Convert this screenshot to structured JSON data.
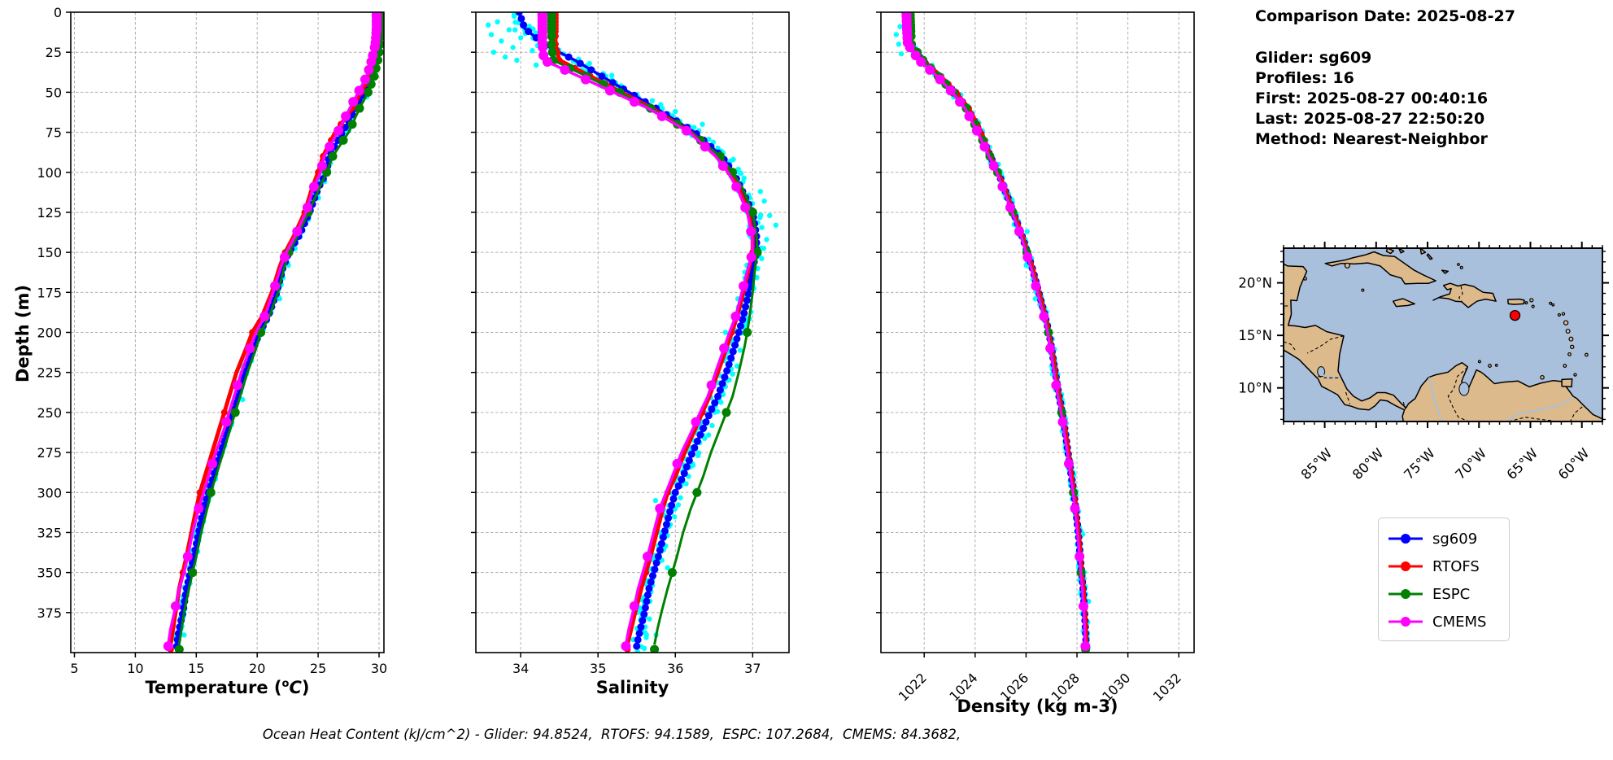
{
  "info_panel": {
    "date_line": "Comparison Date: 2025-08-27",
    "lines": [
      "Glider: sg609",
      "Profiles: 16",
      "First: 2025-08-27 00:40:16",
      "Last: 2025-08-27 22:50:20",
      "Method: Nearest-Neighbor"
    ]
  },
  "caption": {
    "text": "Ocean Heat Content (kJ/cm^2) - Glider: 94.8524,  RTOFS: 94.1589,  ESPC: 107.2684,  CMEMS: 84.3682,"
  },
  "legend": {
    "entries": [
      {
        "label": "sg609",
        "color": "#0000ff"
      },
      {
        "label": "RTOFS",
        "color": "#ff0000"
      },
      {
        "label": "ESPC",
        "color": "#008000"
      },
      {
        "label": "CMEMS",
        "color": "#ff00ff"
      }
    ]
  },
  "chart_data": {
    "type": "line",
    "description": "Vertical ocean profiles: glider sg609 vs models; value on x, depth (m) increasing downward on y",
    "ylabel": "Depth (m)",
    "depth_ticks": [
      0,
      25,
      50,
      75,
      100,
      125,
      150,
      175,
      200,
      225,
      250,
      275,
      300,
      325,
      350,
      375
    ],
    "depth_range": [
      0,
      400
    ],
    "depths": [
      0,
      10,
      20,
      30,
      40,
      50,
      60,
      75,
      90,
      100,
      110,
      125,
      140,
      150,
      160,
      175,
      190,
      200,
      210,
      225,
      240,
      250,
      260,
      275,
      290,
      300,
      310,
      325,
      340,
      350,
      360,
      375,
      385,
      395
    ],
    "panels": [
      {
        "key": "temperature",
        "xlabel_pre": "Temperature (",
        "xlabel_sup": "o",
        "xlabel_var": "C",
        "xlabel_post": ")",
        "xlim": [
          4.7,
          30.4
        ],
        "xticks": [
          5,
          10,
          15,
          20,
          25,
          30
        ],
        "tick_rotation": 0
      },
      {
        "key": "salinity",
        "xlabel": "Salinity",
        "xlim": [
          33.42,
          37.47
        ],
        "xticks": [
          34,
          35,
          36,
          37
        ],
        "tick_rotation": 0
      },
      {
        "key": "density",
        "xlabel": "Density (kg m-3)",
        "xlim": [
          1020.3,
          1032.6
        ],
        "xticks": [
          1022,
          1024,
          1026,
          1028,
          1030,
          1032
        ],
        "tick_rotation": 45
      }
    ],
    "series": [
      {
        "name": "sg609",
        "color": "#0000ff",
        "line_width": 3.5,
        "marker_radius": 4.5,
        "marker_step": 4,
        "temperature": [
          30.0,
          30.0,
          29.9,
          29.6,
          29.2,
          28.8,
          28.1,
          27.0,
          25.9,
          25.7,
          25.0,
          24.3,
          23.4,
          22.6,
          22.1,
          21.6,
          20.9,
          20.2,
          19.7,
          19.0,
          18.4,
          18.0,
          17.6,
          17.0,
          16.4,
          16.0,
          15.6,
          15.2,
          14.8,
          14.5,
          14.2,
          13.9,
          13.6,
          13.4
        ],
        "salinity": [
          33.98,
          34.05,
          34.3,
          34.7,
          35.05,
          35.4,
          35.75,
          36.25,
          36.6,
          36.75,
          36.85,
          37.0,
          37.05,
          37.05,
          37.0,
          36.95,
          36.88,
          36.82,
          36.76,
          36.66,
          36.55,
          36.45,
          36.36,
          36.22,
          36.1,
          36.0,
          35.94,
          35.86,
          35.78,
          35.72,
          35.66,
          35.6,
          35.55,
          35.5
        ],
        "density": [
          1021.4,
          1021.42,
          1021.45,
          1021.9,
          1022.6,
          1023.2,
          1023.7,
          1024.2,
          1024.6,
          1024.9,
          1025.15,
          1025.5,
          1025.85,
          1026.05,
          1026.25,
          1026.5,
          1026.75,
          1026.9,
          1027.0,
          1027.15,
          1027.3,
          1027.42,
          1027.52,
          1027.65,
          1027.78,
          1027.88,
          1027.95,
          1028.05,
          1028.13,
          1028.18,
          1028.24,
          1028.3,
          1028.33,
          1028.36
        ]
      },
      {
        "name": "RTOFS",
        "color": "#ff0000",
        "line_width": 5,
        "marker_radius": 4,
        "marker_depths": [
          0,
          2,
          4,
          6,
          8,
          10,
          12,
          15,
          20,
          25,
          30,
          35,
          40,
          45,
          50,
          60,
          70,
          80,
          90,
          100,
          125,
          150,
          200,
          250,
          300,
          350,
          398
        ],
        "temperature": [
          30.0,
          30.0,
          29.9,
          29.7,
          29.2,
          28.5,
          27.8,
          26.4,
          25.4,
          25.0,
          24.5,
          23.9,
          23.0,
          22.3,
          21.8,
          21.2,
          20.4,
          19.6,
          19.1,
          18.3,
          17.7,
          17.3,
          16.9,
          16.3,
          15.7,
          15.3,
          15.0,
          14.6,
          14.2,
          13.9,
          13.6,
          13.3,
          13.1,
          12.9
        ],
        "salinity": [
          34.45,
          34.45,
          34.45,
          34.5,
          34.9,
          35.3,
          35.7,
          36.2,
          36.55,
          36.7,
          36.82,
          36.95,
          37.0,
          37.0,
          36.95,
          36.88,
          36.8,
          36.73,
          36.66,
          36.55,
          36.44,
          36.35,
          36.26,
          36.12,
          36.0,
          35.9,
          35.84,
          35.76,
          35.68,
          35.62,
          35.56,
          35.48,
          35.43,
          35.38
        ],
        "density": [
          1021.35,
          1021.37,
          1021.4,
          1021.95,
          1022.65,
          1023.25,
          1023.75,
          1024.25,
          1024.62,
          1024.92,
          1025.17,
          1025.52,
          1025.87,
          1026.07,
          1026.27,
          1026.52,
          1026.77,
          1026.92,
          1027.02,
          1027.17,
          1027.32,
          1027.44,
          1027.54,
          1027.67,
          1027.8,
          1027.9,
          1027.97,
          1028.07,
          1028.15,
          1028.2,
          1028.26,
          1028.32,
          1028.35,
          1028.38
        ]
      },
      {
        "name": "ESPC",
        "color": "#008000",
        "line_width": 3,
        "marker_radius": 5.5,
        "marker_depths": [
          0,
          2,
          4,
          6,
          8,
          10,
          12,
          15,
          20,
          25,
          30,
          35,
          40,
          45,
          50,
          60,
          70,
          80,
          90,
          100,
          125,
          150,
          200,
          250,
          300,
          350,
          398
        ],
        "temperature": [
          30.2,
          30.2,
          30.1,
          29.9,
          29.6,
          29.1,
          28.4,
          27.5,
          26.2,
          25.7,
          25.1,
          24.2,
          23.3,
          22.6,
          22.2,
          21.7,
          21.0,
          20.3,
          19.9,
          19.2,
          18.6,
          18.2,
          17.8,
          17.2,
          16.6,
          16.2,
          15.9,
          15.4,
          15.0,
          14.7,
          14.4,
          14.0,
          13.8,
          13.6
        ],
        "salinity": [
          34.4,
          34.4,
          34.4,
          34.42,
          34.85,
          35.28,
          35.68,
          36.2,
          36.58,
          36.74,
          36.87,
          37.0,
          37.05,
          37.06,
          37.03,
          37.0,
          36.96,
          36.93,
          36.89,
          36.82,
          36.74,
          36.66,
          36.58,
          36.46,
          36.36,
          36.28,
          36.2,
          36.1,
          36.02,
          35.96,
          35.9,
          35.82,
          35.77,
          35.73
        ],
        "density": [
          1021.45,
          1021.47,
          1021.5,
          1021.95,
          1022.55,
          1023.15,
          1023.65,
          1024.15,
          1024.58,
          1024.88,
          1025.13,
          1025.48,
          1025.83,
          1026.03,
          1026.23,
          1026.48,
          1026.73,
          1026.88,
          1026.98,
          1027.13,
          1027.28,
          1027.4,
          1027.5,
          1027.63,
          1027.76,
          1027.86,
          1027.93,
          1028.03,
          1028.11,
          1028.16,
          1028.22,
          1028.28,
          1028.31,
          1028.34
        ]
      },
      {
        "name": "CMEMS",
        "color": "#ff00ff",
        "line_width": 3.5,
        "marker_radius": 6,
        "marker_depths": [
          0,
          1,
          2,
          3,
          5,
          6,
          8,
          10,
          11,
          13,
          16,
          19,
          22,
          27,
          31,
          36,
          42,
          49,
          56,
          65,
          74,
          84,
          96,
          109,
          122,
          137,
          153,
          171,
          190,
          210,
          233,
          256,
          282,
          310,
          340,
          371,
          396
        ],
        "temperature": [
          29.8,
          29.8,
          29.7,
          29.4,
          29.0,
          28.3,
          27.6,
          26.6,
          25.5,
          25.2,
          24.6,
          24.0,
          23.1,
          22.4,
          21.9,
          21.3,
          20.6,
          19.9,
          19.4,
          18.7,
          18.1,
          17.7,
          17.3,
          16.6,
          16.0,
          15.6,
          15.2,
          14.7,
          14.3,
          14.0,
          13.6,
          13.2,
          12.9,
          12.7
        ],
        "salinity": [
          34.28,
          34.28,
          34.28,
          34.3,
          34.75,
          35.2,
          35.65,
          36.18,
          36.52,
          36.68,
          36.8,
          36.93,
          36.99,
          37.0,
          36.94,
          36.86,
          36.78,
          36.7,
          36.63,
          36.52,
          36.42,
          36.32,
          36.23,
          36.08,
          35.96,
          35.88,
          35.8,
          35.72,
          35.64,
          35.58,
          35.52,
          35.45,
          35.4,
          35.36
        ],
        "density": [
          1021.3,
          1021.32,
          1021.35,
          1021.8,
          1022.5,
          1023.1,
          1023.6,
          1024.1,
          1024.55,
          1024.85,
          1025.1,
          1025.45,
          1025.8,
          1026.0,
          1026.2,
          1026.45,
          1026.7,
          1026.85,
          1026.95,
          1027.1,
          1027.25,
          1027.38,
          1027.48,
          1027.62,
          1027.75,
          1027.85,
          1027.92,
          1028.02,
          1028.1,
          1028.15,
          1028.21,
          1028.27,
          1028.3,
          1028.33
        ]
      }
    ],
    "raw_scatter": {
      "name": "glider raw points",
      "color": "#00ffff",
      "dot_radius": 3.2,
      "follows": "sg609",
      "jitter": {
        "temperature": 0.22,
        "salinity": 0.1,
        "density": 0.11
      },
      "extra_points": {
        "temperature": [],
        "salinity": [
          [
            33.58,
            8
          ],
          [
            33.62,
            14
          ],
          [
            33.7,
            6
          ],
          [
            33.75,
            18
          ],
          [
            33.85,
            11
          ],
          [
            33.9,
            22
          ],
          [
            33.65,
            25
          ],
          [
            33.8,
            28
          ],
          [
            34.0,
            16
          ],
          [
            34.1,
            9
          ],
          [
            34.15,
            24
          ],
          [
            33.95,
            30
          ],
          [
            34.3,
            20
          ],
          [
            34.45,
            13
          ],
          [
            34.55,
            26
          ],
          [
            34.2,
            33
          ],
          [
            34.85,
            37
          ],
          [
            35.1,
            40
          ],
          [
            35.3,
            46
          ],
          [
            36.0,
            62
          ],
          [
            36.35,
            70
          ],
          [
            36.55,
            85
          ],
          [
            36.75,
            92
          ],
          [
            37.1,
            112
          ],
          [
            37.15,
            118
          ],
          [
            37.22,
            127
          ],
          [
            37.3,
            133
          ],
          [
            37.18,
            142
          ]
        ],
        "density": [
          [
            1020.9,
            14
          ],
          [
            1021.0,
            20
          ],
          [
            1021.1,
            26
          ],
          [
            1021.05,
            9
          ]
        ]
      }
    }
  },
  "map": {
    "extent": {
      "lon_min": -89,
      "lon_max": -58,
      "lat_min": 6.8,
      "lat_max": 23.3
    },
    "lon_ticks": [
      {
        "deg": -85,
        "label": "85°W"
      },
      {
        "deg": -80,
        "label": "80°W"
      },
      {
        "deg": -75,
        "label": "75°W"
      },
      {
        "deg": -70,
        "label": "70°W"
      },
      {
        "deg": -65,
        "label": "65°W"
      },
      {
        "deg": -60,
        "label": "60°W"
      }
    ],
    "lat_ticks": [
      {
        "deg": 20,
        "label": "20°N"
      },
      {
        "deg": 15,
        "label": "15°N"
      },
      {
        "deg": 10,
        "label": "10°N"
      }
    ],
    "glider_marker": {
      "lon": -66.5,
      "lat": 16.9,
      "color": "#ff0000"
    },
    "ocean_color": "#a9c0dd",
    "land_color": "#ddba8b"
  }
}
